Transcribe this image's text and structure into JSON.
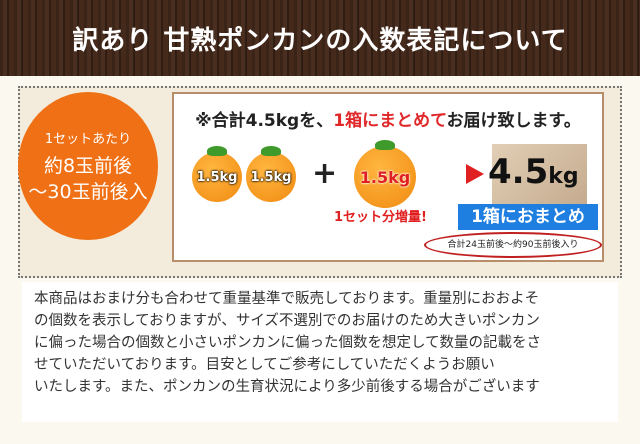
{
  "header": {
    "title": "訳あり 甘熟ポンカンの入数表記について"
  },
  "badge": {
    "line1": "1セットあたり",
    "line2": "約8玉前後",
    "line3": "〜30玉前後入",
    "color": "#f07015"
  },
  "summary": {
    "lead_prefix": "※合計4.5kgを、",
    "lead_highlight": "1箱にまとめて",
    "lead_suffix": "お届け致します。",
    "oranges": [
      "1.5kg",
      "1.5kg",
      "1.5kg"
    ],
    "plus": "+",
    "bonus_label": "1セット分増量!",
    "total": "4.5",
    "total_unit": "kg",
    "combined_label": "1箱におまとめ",
    "count_note": "合計24玉前後〜約90玉前後入り",
    "accent_red": "#e0282a",
    "accent_blue": "#1f7fe0"
  },
  "description": {
    "lines": [
      "本商品はおまけ分も合わせて重量基準で販売しております。重量別におおよそ",
      "の個数を表示しておりますが、サイズ不選別でのお届けのため大きいポンカン",
      "に偏った場合の個数と小さいポンカンに偏った個数を想定して数量の記載をさ",
      "せていただいております。目安としてご参考にしていただくようお願い",
      "いたします。また、ポンカンの生育状況により多少前後する場合がございます"
    ]
  }
}
